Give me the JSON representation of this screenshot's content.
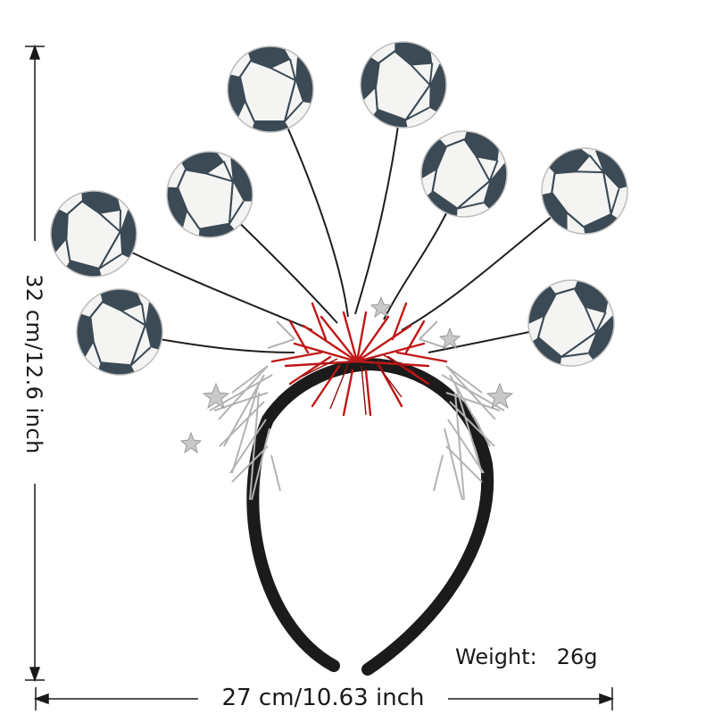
{
  "dimensions": {
    "height_label": "32 cm/12.6 inch",
    "width_label": "27 cm/10.63 inch"
  },
  "weight": {
    "label": "Weight:",
    "value": "26g"
  },
  "product": {
    "ball_count": 8,
    "colors": {
      "band": "#1b1b1b",
      "red_tinsel": "#c01818",
      "silver_tinsel": "#b8b8b8",
      "ball_white": "#f4f4f2",
      "ball_patch": "#3b4a55",
      "wire": "#1e1e1e"
    }
  }
}
